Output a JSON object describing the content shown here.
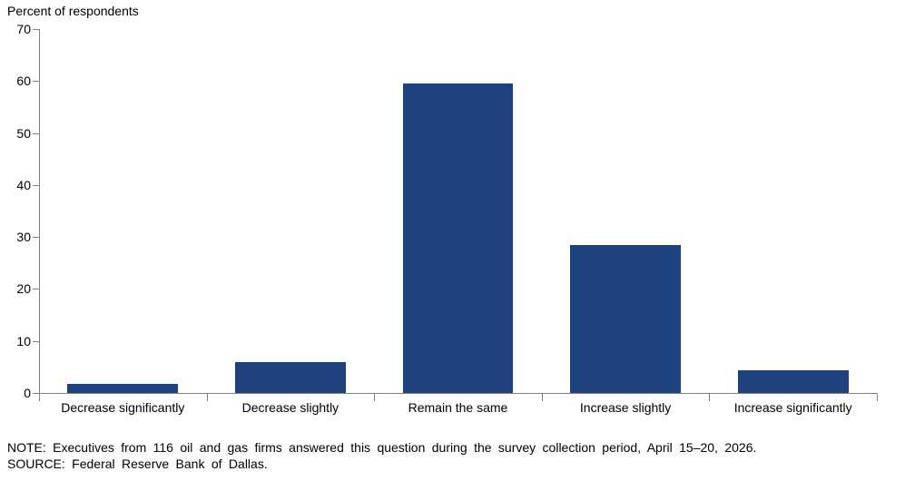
{
  "chart_data": {
    "type": "bar",
    "title": "Percent of respondents",
    "categories": [
      "Decrease significantly",
      "Decrease slightly",
      "Remain the same",
      "Increase slightly",
      "Increase significantly"
    ],
    "values": [
      1.7,
      6.0,
      59.5,
      28.4,
      4.3
    ],
    "xlabel": "",
    "ylabel": "Percent of respondents",
    "ylim": [
      0,
      70
    ],
    "yticks": [
      0,
      10,
      20,
      30,
      40,
      50,
      60,
      70
    ],
    "grid": false,
    "legend_position": "none",
    "bar_color": "#1e417f",
    "axis_color": "#808080"
  },
  "notes": {
    "note": "NOTE: Executives from 116 oil and gas firms answered this question during the survey collection period, April 15–20, 2026.",
    "source": "SOURCE: Federal Reserve Bank of Dallas."
  }
}
